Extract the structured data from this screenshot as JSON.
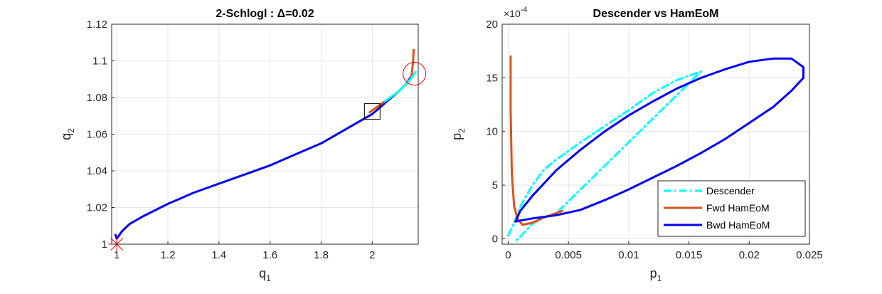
{
  "figure": {
    "background": "#ffffff",
    "colors": {
      "descender": "#00ffff",
      "fwd": "#d95319",
      "bwd": "#0000ff",
      "marker": "#ff0000",
      "grid": "#e6e6e6",
      "axis": "#262626"
    }
  },
  "chart_data": [
    {
      "type": "line",
      "title": "2-Schlogl : Δ=0.02",
      "xlabel": "q",
      "xlabel_sub": "1",
      "ylabel": "q",
      "ylabel_sub": "2",
      "xlim": [
        0.98,
        2.18
      ],
      "ylim": [
        1.0,
        1.12
      ],
      "xticks": [
        "1",
        "1.2",
        "1.4",
        "1.6",
        "1.8",
        "2"
      ],
      "yticks": [
        "1",
        "1.02",
        "1.04",
        "1.06",
        "1.08",
        "1.1",
        "1.12"
      ],
      "grid": true,
      "series": [
        {
          "color": "#0000ff",
          "x": [
            0.995,
            1.0,
            1.005,
            1.02,
            1.05,
            1.1,
            1.2,
            1.3,
            1.4,
            1.5,
            1.6,
            1.7,
            1.8,
            1.9,
            2.0,
            2.05,
            2.1,
            2.13,
            2.15
          ],
          "y": [
            1.005,
            1.003,
            1.004,
            1.007,
            1.011,
            1.015,
            1.022,
            1.028,
            1.033,
            1.038,
            1.043,
            1.049,
            1.055,
            1.063,
            1.071,
            1.077,
            1.083,
            1.087,
            1.091
          ]
        },
        {
          "color": "#d95319",
          "x": [
            1.99,
            2.03,
            2.07,
            2.1,
            2.13,
            2.15,
            2.155,
            2.16,
            2.162
          ],
          "y": [
            1.072,
            1.076,
            1.08,
            1.083,
            1.087,
            1.09,
            1.093,
            1.1,
            1.106
          ]
        },
        {
          "color": "#00ffff",
          "x": [
            2.05,
            2.1,
            2.13,
            2.155,
            2.17
          ],
          "y": [
            1.078,
            1.083,
            1.087,
            1.091,
            1.094
          ]
        }
      ],
      "markers": [
        {
          "shape": "star",
          "color": "#ff0000",
          "x": 1.0,
          "y": 1.0
        },
        {
          "shape": "square",
          "color": "#000000",
          "x": 2.0,
          "y": 1.072
        },
        {
          "shape": "circle",
          "color": "#ff0000",
          "x": 2.165,
          "y": 1.093
        }
      ]
    },
    {
      "type": "line",
      "title": "Descender vs HamEoM",
      "xlabel": "p",
      "xlabel_sub": "1",
      "ylabel": "p",
      "ylabel_sub": "2",
      "exponent_label": "×10",
      "exponent_power": "-4",
      "xlim": [
        -0.0005,
        0.025
      ],
      "ylim": [
        -0.5,
        20
      ],
      "xticks": [
        "0",
        "0.005",
        "0.01",
        "0.015",
        "0.02",
        "0.025"
      ],
      "yticks": [
        "0",
        "5",
        "10",
        "15",
        "20"
      ],
      "grid": true,
      "legend_position": "bottom-right",
      "series": [
        {
          "name": "Descender",
          "color": "#00ffff",
          "style": "dash-dot",
          "x": [
            0.0,
            0.0005,
            0.001,
            0.002,
            0.003,
            0.004,
            0.005,
            0.006,
            0.008,
            0.01,
            0.012,
            0.014,
            0.016,
            0.004,
            0.003,
            0.002,
            0.001,
            0.0005
          ],
          "y": [
            0.3,
            1.5,
            3.0,
            5.0,
            6.5,
            7.4,
            8.2,
            9.0,
            10.5,
            12.0,
            13.6,
            14.8,
            15.6,
            2.4,
            2.0,
            1.4,
            0.2,
            -0.3
          ]
        },
        {
          "name": "Fwd HamEoM",
          "color": "#d95319",
          "style": "solid",
          "x": [
            0.0002,
            0.0002,
            0.0003,
            0.0005,
            0.0008,
            0.0012,
            0.002,
            0.003,
            0.0045
          ],
          "y": [
            17.0,
            12.0,
            6.0,
            3.0,
            1.8,
            1.3,
            1.5,
            2.0,
            2.6
          ]
        },
        {
          "name": "Bwd HamEoM",
          "color": "#0000ff",
          "style": "solid",
          "x": [
            0.0006,
            0.001,
            0.002,
            0.004,
            0.006,
            0.008,
            0.01,
            0.012,
            0.014,
            0.016,
            0.018,
            0.02,
            0.022,
            0.0235,
            0.0245,
            0.0245,
            0.0235,
            0.022,
            0.02,
            0.018,
            0.016,
            0.014,
            0.012,
            0.01,
            0.008,
            0.006,
            0.004,
            0.002,
            0.001,
            0.0006
          ],
          "y": [
            1.6,
            2.6,
            4.0,
            6.4,
            8.3,
            10.0,
            11.5,
            12.8,
            14.0,
            15.0,
            15.8,
            16.5,
            16.8,
            16.8,
            16.0,
            15.0,
            13.8,
            12.3,
            10.8,
            9.3,
            8.0,
            6.8,
            5.7,
            4.6,
            3.6,
            2.7,
            2.2,
            1.9,
            1.7,
            1.6
          ]
        }
      ]
    }
  ]
}
